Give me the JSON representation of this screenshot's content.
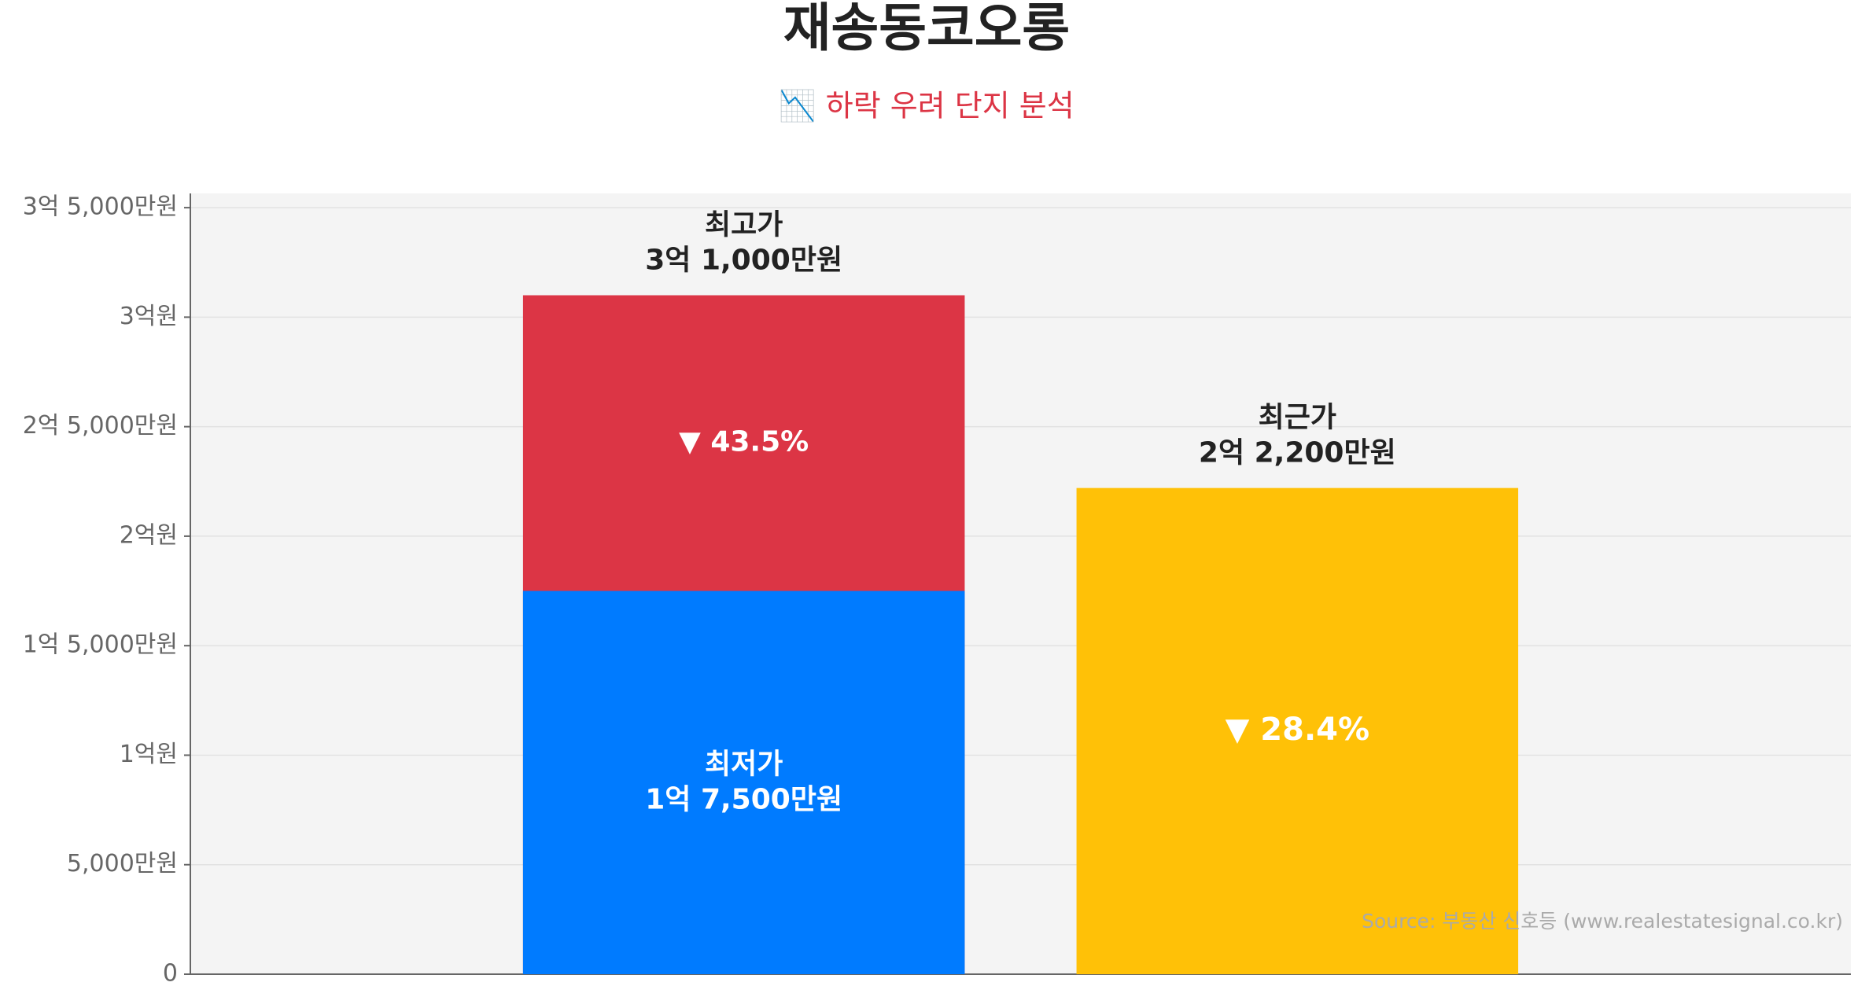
{
  "chart_data": {
    "type": "bar",
    "title": "재송동코오롱",
    "subtitle": "📉 하락 우려 단지 분석",
    "source": "Source: 부동산 신호등 (www.realestatesignal.co.kr)",
    "categories": [
      null,
      null
    ],
    "series": [
      {
        "name": "최고가",
        "color": "#dc3545",
        "values": [
          31000,
          null
        ],
        "value_labels": [
          "3억 1,000만원",
          null
        ]
      },
      {
        "name": "최저가",
        "color": "#007bff",
        "values": [
          17500,
          null
        ],
        "value_labels": [
          "1억 7,500만원",
          null
        ]
      },
      {
        "name": "최근가",
        "color": "#ffc107",
        "values": [
          null,
          22200
        ],
        "value_labels": [
          null,
          "2억 2,200만원"
        ]
      }
    ],
    "annotations": [
      "▼ 43.5%",
      "▼ 28.4%"
    ],
    "ylim": [
      0,
      35650
    ],
    "yticks": [
      0,
      {
        "value": 5000,
        "label": "5,000만원"
      },
      {
        "value": 10000,
        "label": "1억원"
      },
      {
        "value": 15000,
        "label": "1억 5,000만원"
      },
      {
        "value": 20000,
        "label": "2억원"
      },
      {
        "value": 25000,
        "label": "2억 5,000만원"
      },
      {
        "value": 30000,
        "label": "3억원"
      },
      {
        "value": 35000,
        "label": "3억 5,000만원"
      }
    ],
    "grid": true
  }
}
